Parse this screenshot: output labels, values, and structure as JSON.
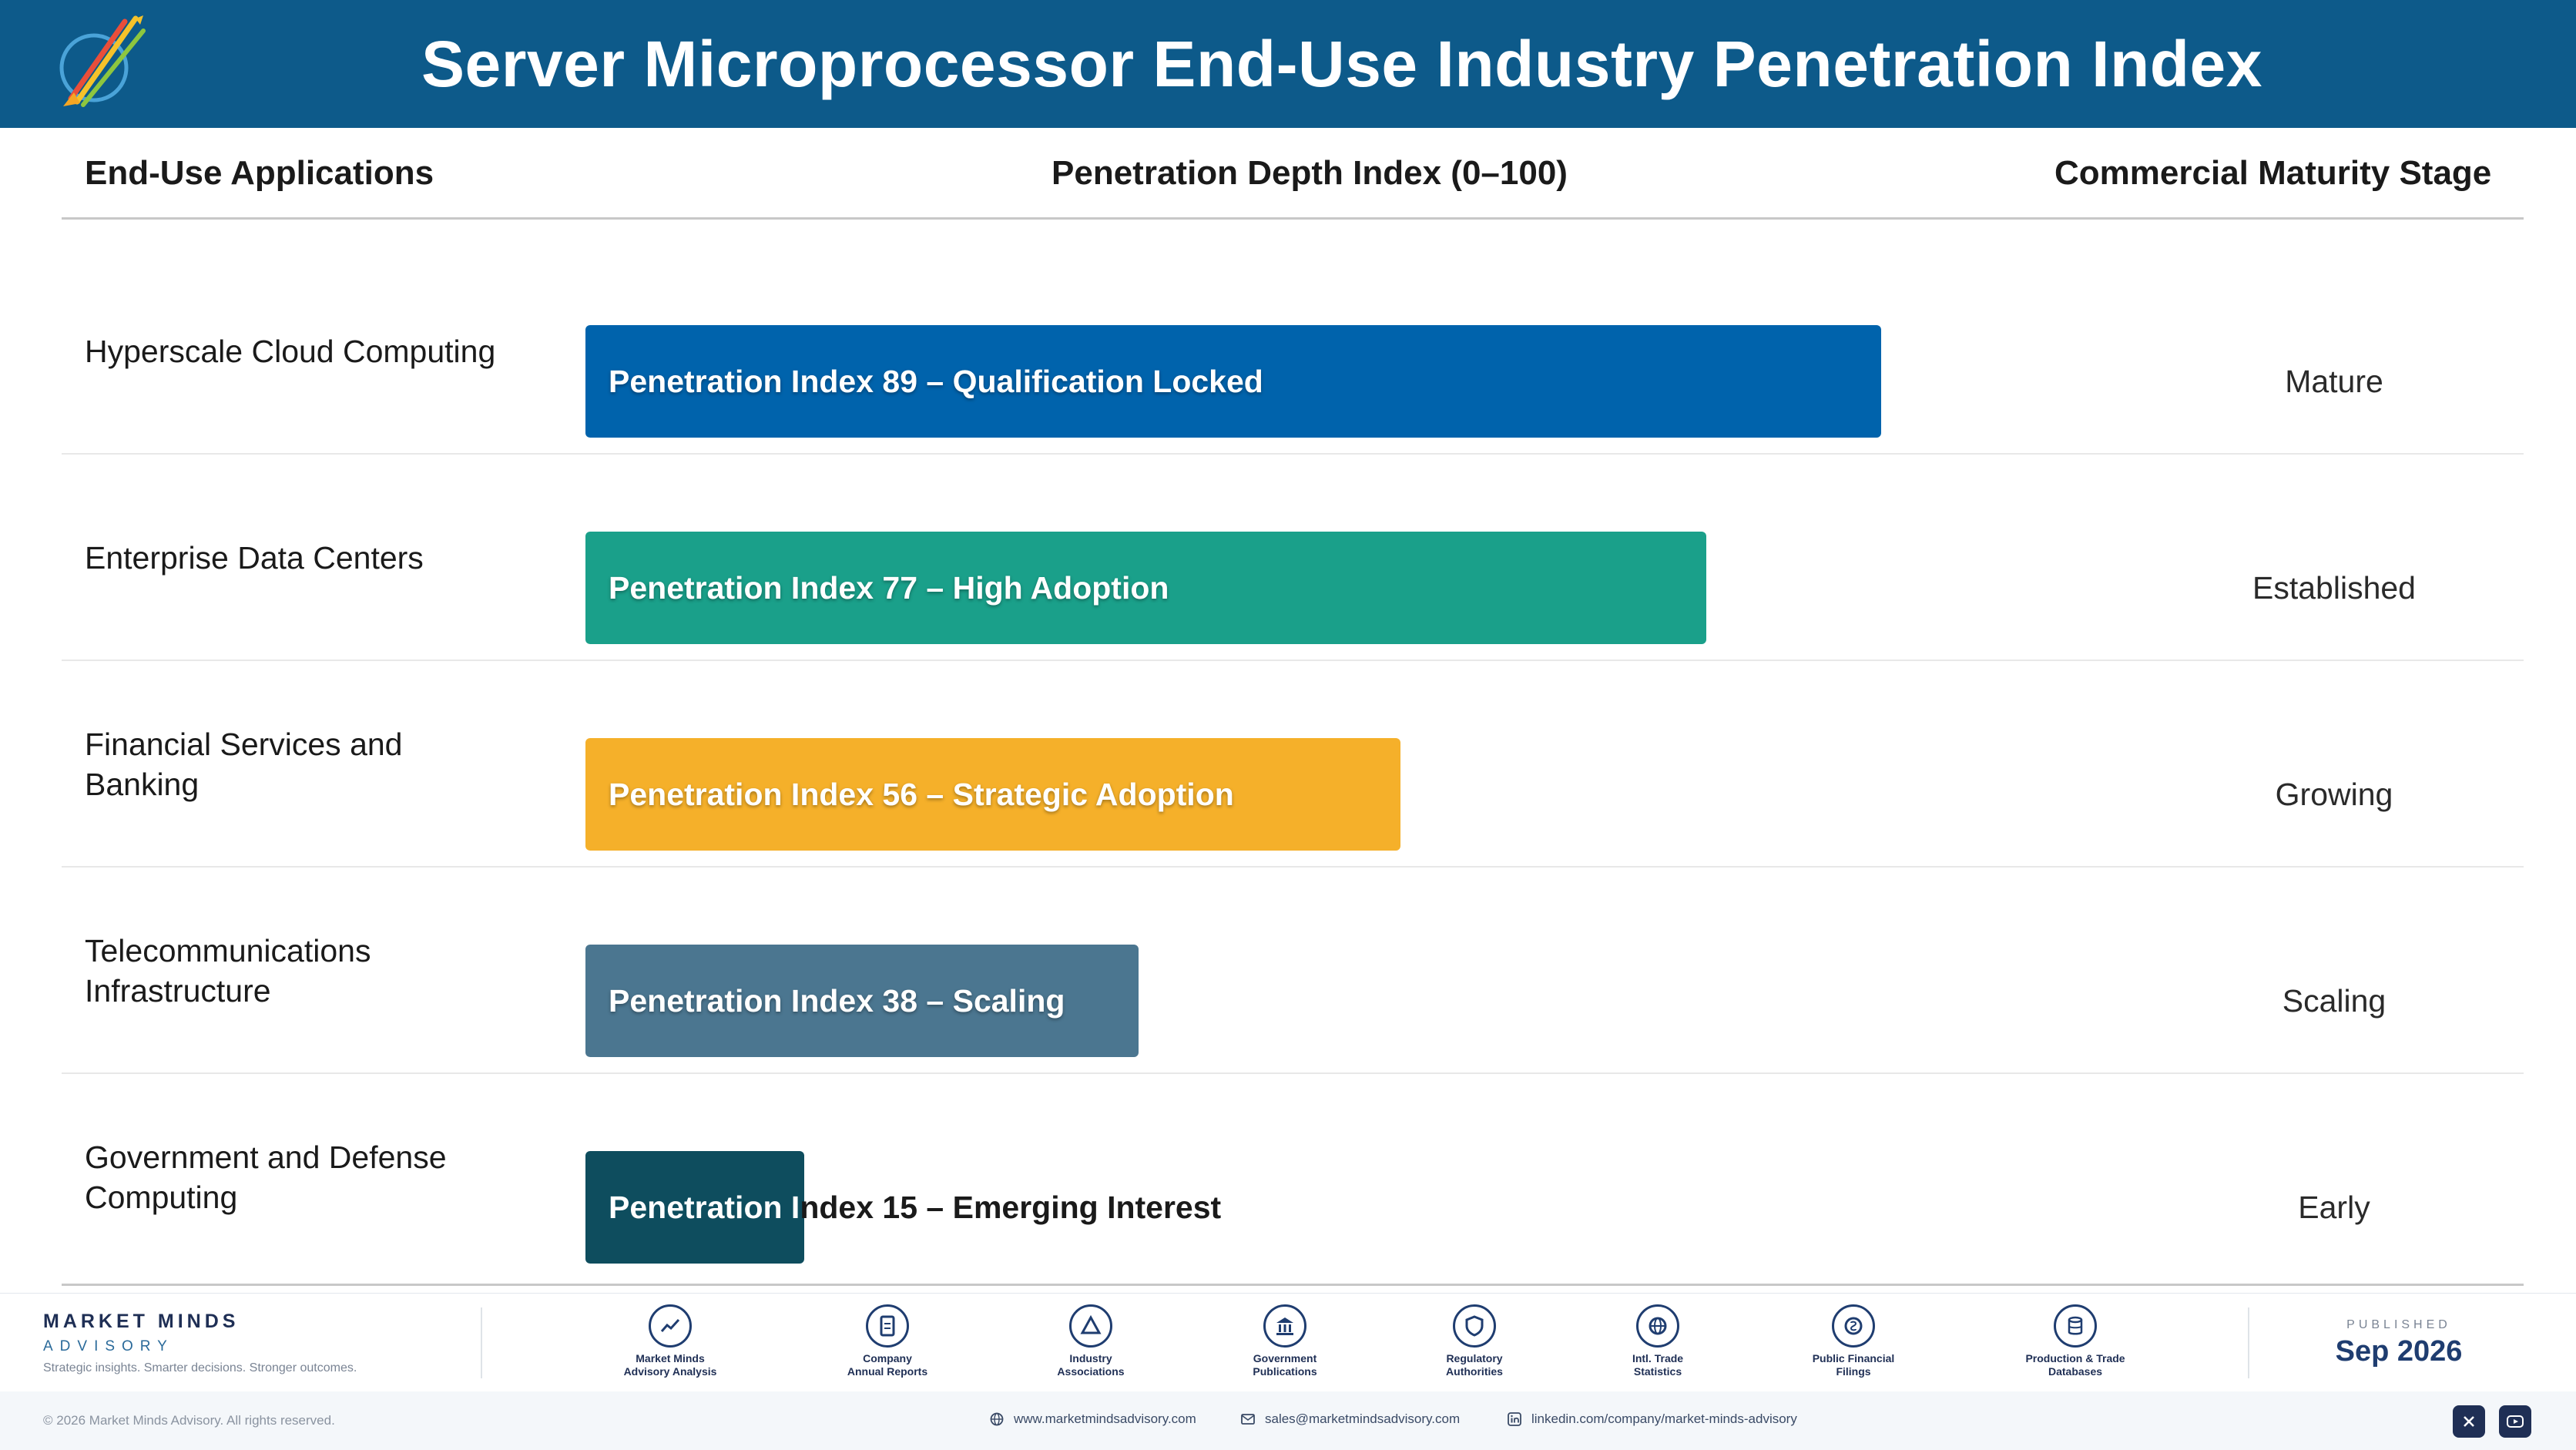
{
  "header": {
    "title": "Server Microprocessor End-Use Industry Penetration Index",
    "background": "#0d5a8a"
  },
  "columns": {
    "applications": "End-Use Applications",
    "index": "Penetration Depth Index (0–100)",
    "stage": "Commercial Maturity Stage"
  },
  "chart_data": {
    "type": "bar",
    "orientation": "horizontal",
    "xlim": [
      0,
      100
    ],
    "categories": [
      "Hyperscale Cloud Computing",
      "Enterprise Data Centers",
      "Financial Services and Banking",
      "Telecommunications Infrastructure",
      "Government and Defense Computing"
    ],
    "values": [
      89,
      77,
      56,
      38,
      15
    ],
    "bar_labels": [
      "Penetration Index 89 – Qualification Locked",
      "Penetration Index 77 – High Adoption",
      "Penetration Index 56 – Strategic Adoption",
      "Penetration Index 38 – Scaling",
      "Penetration Index 15 – Emerging Interest"
    ],
    "stages": [
      "Mature",
      "Established",
      "Growing",
      "Scaling",
      "Early"
    ],
    "colors": [
      "#0063ac",
      "#1aa08a",
      "#f5b02a",
      "#4b7690",
      "#0e4d5e"
    ]
  },
  "footer": {
    "brand_name": "MARKET MINDS",
    "brand_sub": "ADVISORY",
    "brand_tag": "Strategic insights. Smarter decisions. Stronger outcomes.",
    "sources": [
      {
        "icon": "trend-chart-icon",
        "label_1": "Market Minds",
        "label_2": "Advisory Analysis"
      },
      {
        "icon": "document-icon",
        "label_1": "Company",
        "label_2": "Annual Reports"
      },
      {
        "icon": "network-icon",
        "label_1": "Industry",
        "label_2": "Associations"
      },
      {
        "icon": "government-building-icon",
        "label_1": "Government",
        "label_2": "Publications"
      },
      {
        "icon": "shield-icon",
        "label_1": "Regulatory",
        "label_2": "Authorities"
      },
      {
        "icon": "globe-icon",
        "label_1": "Intl. Trade",
        "label_2": "Statistics"
      },
      {
        "icon": "coin-icon",
        "label_1": "Public Financial",
        "label_2": "Filings"
      },
      {
        "icon": "database-icon",
        "label_1": "Production & Trade",
        "label_2": "Databases"
      }
    ],
    "published_label": "PUBLISHED",
    "published_date": "Sep 2026",
    "copyright": "© 2026 Market Minds Advisory. All rights reserved.",
    "website": "www.marketmindsadvisory.com",
    "email": "sales@marketmindsadvisory.com",
    "linkedin": "linkedin.com/company/market-minds-advisory"
  }
}
